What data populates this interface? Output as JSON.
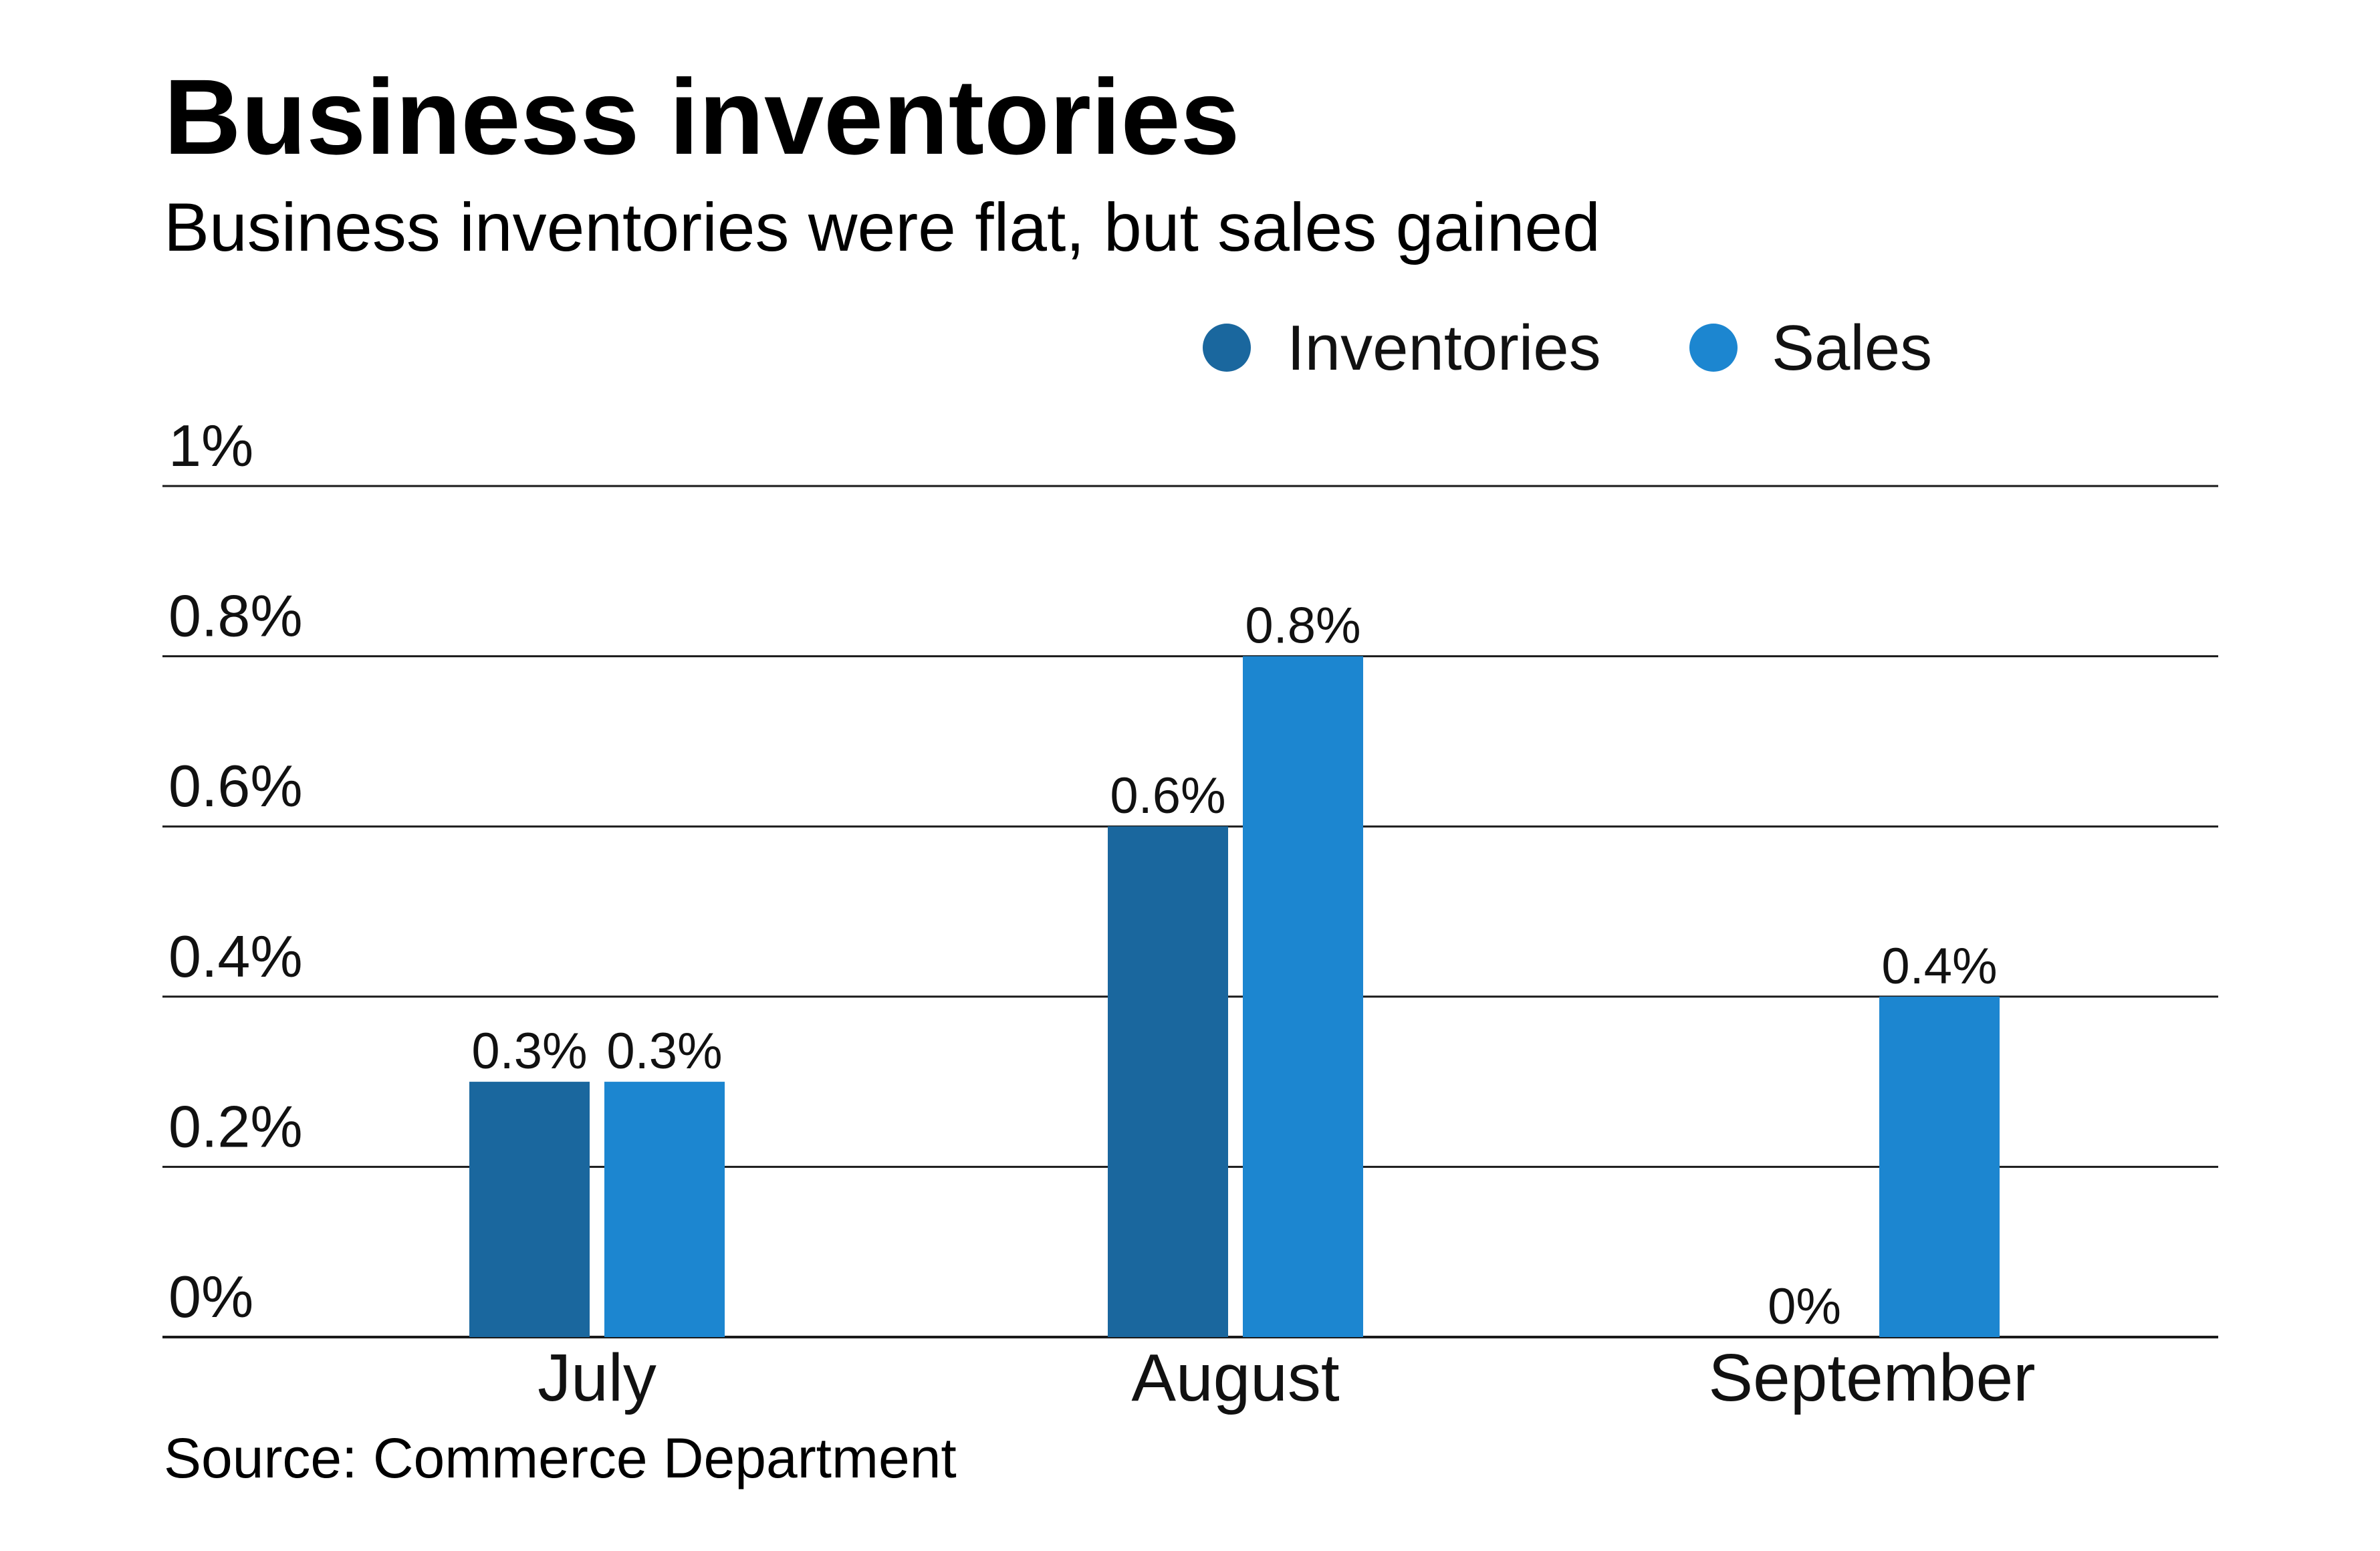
{
  "chart_data": {
    "type": "bar",
    "title": "Business inventories",
    "subtitle": "Business inventories were flat, but sales gained",
    "categories": [
      "July",
      "August",
      "September"
    ],
    "series": [
      {
        "name": "Inventories",
        "color": "#1a679e",
        "values": [
          0.3,
          0.6,
          0
        ],
        "labels": [
          "0.3%",
          "0.6%",
          "0%"
        ]
      },
      {
        "name": "Sales",
        "color": "#1c86d0",
        "values": [
          0.3,
          0.8,
          0.4
        ],
        "labels": [
          "0.3%",
          "0.8%",
          "0.4%"
        ]
      }
    ],
    "ylim": [
      0,
      1
    ],
    "yticks": [
      0,
      0.2,
      0.4,
      0.6,
      0.8,
      1
    ],
    "ytick_labels": [
      "0%",
      "0.2%",
      "0.4%",
      "0.6%",
      "0.8%",
      "1%"
    ],
    "grid": true,
    "legend_position": "top-right",
    "xlabel": "",
    "ylabel": "",
    "source": "Source: Commerce Department"
  }
}
